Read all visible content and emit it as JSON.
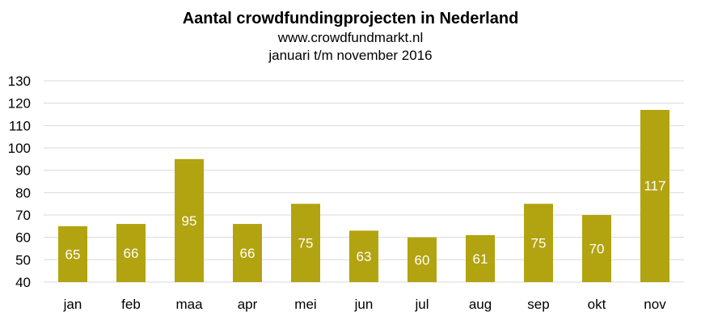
{
  "colors": {
    "bar": "#b2a310",
    "grid": "#d9d9d9",
    "label": "#ffffff"
  },
  "chart_data": {
    "type": "bar",
    "title": "Aantal crowdfundingprojecten in Nederland",
    "subtitle_1": "www.crowdfundmarkt.nl",
    "subtitle_2": "januari t/m november 2016",
    "xlabel": "",
    "ylabel": "",
    "ylim": [
      40,
      130
    ],
    "yticks": [
      40,
      50,
      60,
      70,
      80,
      90,
      100,
      110,
      120,
      130
    ],
    "grid": true,
    "legend": "none",
    "categories": [
      "jan",
      "feb",
      "maa",
      "apr",
      "mei",
      "jun",
      "jul",
      "aug",
      "sep",
      "okt",
      "nov"
    ],
    "values": [
      65,
      66,
      95,
      66,
      75,
      63,
      60,
      61,
      75,
      70,
      117
    ],
    "data_labels": [
      "65",
      "66",
      "95",
      "66",
      "75",
      "63",
      "60",
      "61",
      "75",
      "70",
      "117"
    ]
  }
}
